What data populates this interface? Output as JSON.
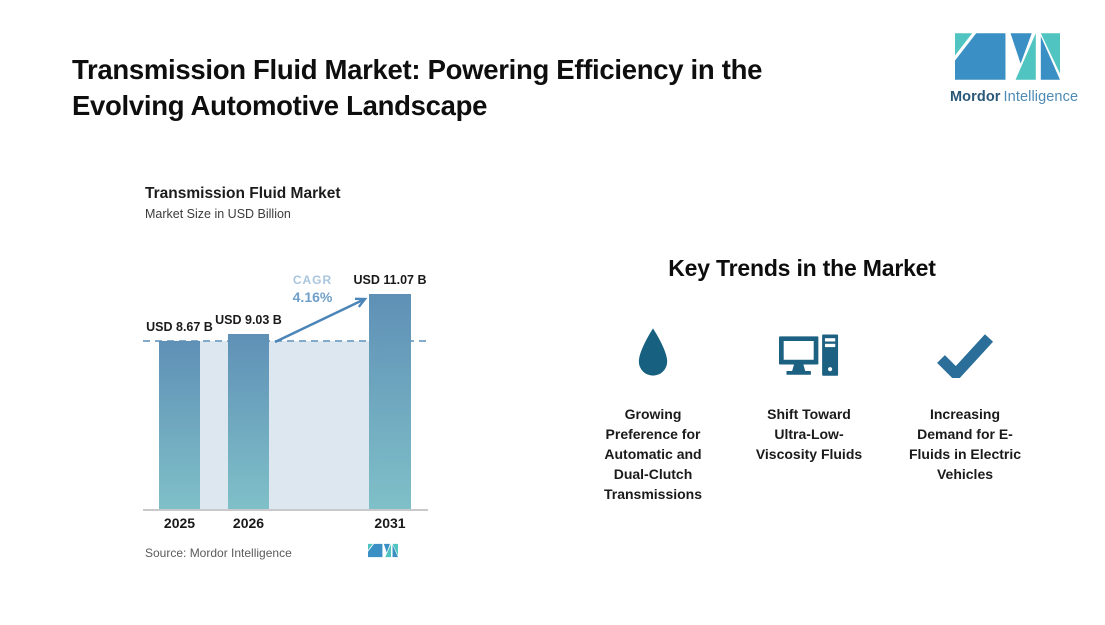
{
  "header": {
    "title_lines": [
      "Transmission Fluid Market: Powering Efficiency in the",
      "Evolving Automotive Landscape"
    ]
  },
  "brand": {
    "name_bold": "Mordor",
    "name_light": "Intelligence",
    "colors": {
      "teal": "#4fc4c0",
      "blue": "#3a8fc4"
    }
  },
  "chart": {
    "title": "Transmission Fluid Market",
    "subtitle": "Market Size in USD Billion",
    "cagr_label": "CAGR",
    "cagr_value": "4.16%",
    "source": "Source: Mordor Intelligence"
  },
  "chart_data": {
    "type": "bar",
    "title": "Transmission Fluid Market",
    "subtitle": "Market Size in USD Billion",
    "unit": "USD Billion",
    "categories": [
      "2025",
      "2026",
      "2031"
    ],
    "values": [
      8.67,
      9.03,
      11.07
    ],
    "value_labels": [
      "USD 8.67 B",
      "USD 9.03 B",
      "USD 11.07 B"
    ],
    "cagr_pct": 4.16,
    "reference_line_value": 8.67,
    "ylim": [
      0,
      11.5
    ],
    "grid": false,
    "legend": "none",
    "bar_gradient_top": "#5f90b6",
    "bar_gradient_bottom": "#7fc0c8",
    "backdrop_color": "#dde7f0",
    "dashed_line_color": "#83abc9",
    "arrow_color": "#4c86b8"
  },
  "trends": {
    "heading": "Key Trends in the Market",
    "items": [
      {
        "icon": "droplet-icon",
        "label": "Growing Preference for Automatic and Dual-Clutch Transmissions",
        "label_lines": [
          "Growing",
          "Preference for",
          "Automatic and",
          "Dual-Clutch",
          "Transmissions"
        ]
      },
      {
        "icon": "desktop-computer-icon",
        "label": "Shift Toward Ultra-Low-Viscosity Fluids",
        "label_lines": [
          "Shift Toward",
          "Ultra-Low-",
          "Viscosity Fluids"
        ]
      },
      {
        "icon": "checkmark-icon",
        "label": "Increasing Demand for E-Fluids in Electric Vehicles",
        "label_lines": [
          "Increasing",
          "Demand for E-",
          "Fluids in Electric",
          "Vehicles"
        ]
      }
    ]
  }
}
